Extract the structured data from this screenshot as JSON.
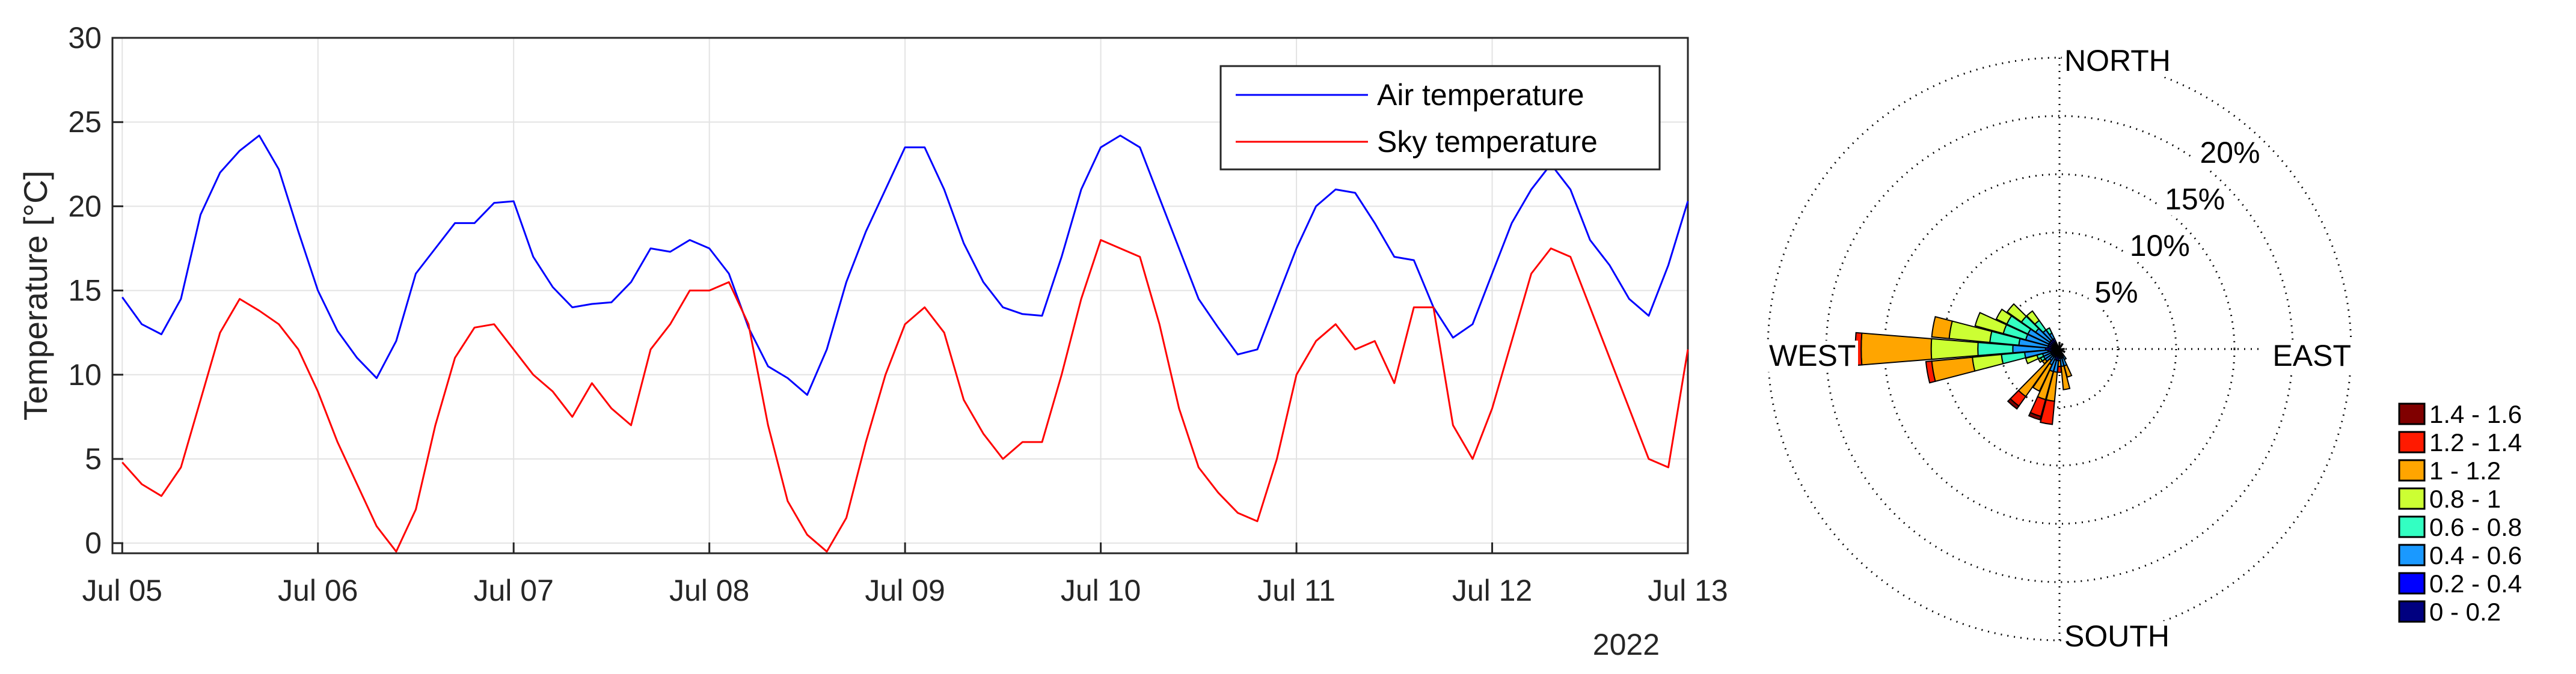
{
  "chart_data": [
    {
      "type": "line",
      "ylabel": "Temperature [°C]",
      "xlabel": "2022",
      "ylim": [
        0,
        30
      ],
      "xlim": [
        0,
        8
      ],
      "grid": true,
      "legend_position": "top-right",
      "yticks": [
        "0",
        "5",
        "10",
        "15",
        "20",
        "25",
        "30"
      ],
      "xticks": [
        "Jul 05",
        "Jul 06",
        "Jul 07",
        "Jul 08",
        "Jul 09",
        "Jul 10",
        "Jul 11",
        "Jul 12",
        "Jul 13"
      ],
      "year_label": "2022",
      "series": [
        {
          "name": "Air temperature",
          "color": "#0000ff",
          "points": [
            [
              0,
              14.6
            ],
            [
              0.1,
              13
            ],
            [
              0.2,
              12.4
            ],
            [
              0.3,
              14.5
            ],
            [
              0.4,
              19.5
            ],
            [
              0.5,
              22
            ],
            [
              0.6,
              23.3
            ],
            [
              0.7,
              24.2
            ],
            [
              0.8,
              22.2
            ],
            [
              0.9,
              18.5
            ],
            [
              1.0,
              15
            ],
            [
              1.1,
              12.6
            ],
            [
              1.2,
              11
            ],
            [
              1.3,
              9.8
            ],
            [
              1.4,
              12
            ],
            [
              1.5,
              16
            ],
            [
              1.6,
              17.5
            ],
            [
              1.7,
              19
            ],
            [
              1.8,
              19
            ],
            [
              1.9,
              20.2
            ],
            [
              2.0,
              20.3
            ],
            [
              2.1,
              17
            ],
            [
              2.2,
              15.2
            ],
            [
              2.3,
              14
            ],
            [
              2.4,
              14.2
            ],
            [
              2.5,
              14.3
            ],
            [
              2.6,
              15.5
            ],
            [
              2.7,
              17.5
            ],
            [
              2.8,
              17.3
            ],
            [
              2.9,
              18
            ],
            [
              3.0,
              17.5
            ],
            [
              3.1,
              16
            ],
            [
              3.2,
              12.8
            ],
            [
              3.3,
              10.5
            ],
            [
              3.4,
              9.8
            ],
            [
              3.5,
              8.8
            ],
            [
              3.6,
              11.5
            ],
            [
              3.7,
              15.5
            ],
            [
              3.8,
              18.5
            ],
            [
              3.9,
              21
            ],
            [
              4.0,
              23.5
            ],
            [
              4.1,
              23.5
            ],
            [
              4.2,
              21
            ],
            [
              4.3,
              17.8
            ],
            [
              4.4,
              15.5
            ],
            [
              4.5,
              14
            ],
            [
              4.6,
              13.6
            ],
            [
              4.7,
              13.5
            ],
            [
              4.8,
              17
            ],
            [
              4.9,
              21
            ],
            [
              5.0,
              23.5
            ],
            [
              5.1,
              24.2
            ],
            [
              5.2,
              23.5
            ],
            [
              5.3,
              20.5
            ],
            [
              5.4,
              17.5
            ],
            [
              5.5,
              14.5
            ],
            [
              5.6,
              12.8
            ],
            [
              5.7,
              11.2
            ],
            [
              5.8,
              11.5
            ],
            [
              5.9,
              14.5
            ],
            [
              6.0,
              17.5
            ],
            [
              6.1,
              20
            ],
            [
              6.2,
              21
            ],
            [
              6.3,
              20.8
            ],
            [
              6.4,
              19
            ],
            [
              6.5,
              17
            ],
            [
              6.6,
              16.8
            ],
            [
              6.7,
              14
            ],
            [
              6.8,
              12.2
            ],
            [
              6.9,
              13
            ],
            [
              7.0,
              16
            ],
            [
              7.1,
              19
            ],
            [
              7.2,
              21
            ],
            [
              7.3,
              22.5
            ],
            [
              7.4,
              21
            ],
            [
              7.5,
              18
            ],
            [
              7.6,
              16.5
            ],
            [
              7.7,
              14.5
            ],
            [
              7.8,
              13.5
            ],
            [
              7.9,
              16.5
            ],
            [
              8.0,
              20.3
            ]
          ]
        },
        {
          "name": "Sky temperature",
          "color": "#ff0000",
          "points": [
            [
              0,
              4.8
            ],
            [
              0.1,
              3.5
            ],
            [
              0.2,
              2.8
            ],
            [
              0.3,
              4.5
            ],
            [
              0.4,
              8.5
            ],
            [
              0.5,
              12.5
            ],
            [
              0.6,
              14.5
            ],
            [
              0.7,
              13.8
            ],
            [
              0.8,
              13
            ],
            [
              0.9,
              11.5
            ],
            [
              1.0,
              9
            ],
            [
              1.1,
              6
            ],
            [
              1.2,
              3.5
            ],
            [
              1.3,
              1
            ],
            [
              1.4,
              -0.5
            ],
            [
              1.5,
              2
            ],
            [
              1.6,
              7
            ],
            [
              1.7,
              11
            ],
            [
              1.8,
              12.8
            ],
            [
              1.9,
              13
            ],
            [
              2.0,
              11.5
            ],
            [
              2.1,
              10
            ],
            [
              2.2,
              9
            ],
            [
              2.3,
              7.5
            ],
            [
              2.4,
              9.5
            ],
            [
              2.5,
              8
            ],
            [
              2.6,
              7
            ],
            [
              2.7,
              11.5
            ],
            [
              2.8,
              13
            ],
            [
              2.9,
              15
            ],
            [
              3.0,
              15
            ],
            [
              3.1,
              15.5
            ],
            [
              3.2,
              13
            ],
            [
              3.3,
              7
            ],
            [
              3.4,
              2.5
            ],
            [
              3.5,
              0.5
            ],
            [
              3.6,
              -0.5
            ],
            [
              3.7,
              1.5
            ],
            [
              3.8,
              6
            ],
            [
              3.9,
              10
            ],
            [
              4.0,
              13
            ],
            [
              4.1,
              14
            ],
            [
              4.2,
              12.5
            ],
            [
              4.3,
              8.5
            ],
            [
              4.4,
              6.5
            ],
            [
              4.5,
              5
            ],
            [
              4.6,
              6
            ],
            [
              4.7,
              6
            ],
            [
              4.8,
              10
            ],
            [
              4.9,
              14.5
            ],
            [
              5.0,
              18
            ],
            [
              5.1,
              17.5
            ],
            [
              5.2,
              17
            ],
            [
              5.3,
              13
            ],
            [
              5.4,
              8
            ],
            [
              5.5,
              4.5
            ],
            [
              5.6,
              3
            ],
            [
              5.7,
              1.8
            ],
            [
              5.8,
              1.3
            ],
            [
              5.9,
              5
            ],
            [
              6.0,
              10
            ],
            [
              6.1,
              12
            ],
            [
              6.2,
              13
            ],
            [
              6.3,
              11.5
            ],
            [
              6.4,
              12
            ],
            [
              6.5,
              9.5
            ],
            [
              6.6,
              14
            ],
            [
              6.7,
              14
            ],
            [
              6.8,
              7
            ],
            [
              6.9,
              5
            ],
            [
              7.0,
              8
            ],
            [
              7.1,
              12
            ],
            [
              7.2,
              16
            ],
            [
              7.3,
              17.5
            ],
            [
              7.4,
              17
            ],
            [
              7.5,
              14
            ],
            [
              7.6,
              11
            ],
            [
              7.7,
              8
            ],
            [
              7.8,
              5
            ],
            [
              7.9,
              4.5
            ],
            [
              8.0,
              11.5
            ]
          ]
        }
      ]
    },
    {
      "type": "wind-rose",
      "directions": {
        "north": "NORTH",
        "east": "EAST",
        "south": "SOUTH",
        "west": "WEST"
      },
      "rlim": [
        0,
        25
      ],
      "radial_ticks": [
        {
          "value": 5,
          "label": "5%"
        },
        {
          "value": 10,
          "label": "10%"
        },
        {
          "value": 15,
          "label": "15%"
        },
        {
          "value": 20,
          "label": "20%"
        }
      ],
      "bins": [
        {
          "label": "1.4 - 1.6",
          "color": "#800000"
        },
        {
          "label": "1.2 - 1.4",
          "color": "#ff1a00"
        },
        {
          "label": "1 - 1.2",
          "color": "#ffa500"
        },
        {
          "label": "0.8 - 1",
          "color": "#ccff33"
        },
        {
          "label": "0.6 - 0.8",
          "color": "#33ffc2"
        },
        {
          "label": "0.4 - 0.6",
          "color": "#1a99ff"
        },
        {
          "label": "0.2 - 0.4",
          "color": "#0000ff"
        },
        {
          "label": "0 - 0.2",
          "color": "#000080"
        }
      ],
      "sectors": [
        {
          "direction_deg": 270,
          "cumulative_percent": [
            0.5,
            1.2,
            4,
            7,
            11,
            17,
            17.5,
            17.5
          ]
        },
        {
          "direction_deg": 280,
          "cumulative_percent": [
            0.5,
            1,
            3.5,
            6,
            9.5,
            11,
            11,
            11
          ]
        },
        {
          "direction_deg": 260,
          "cumulative_percent": [
            0.5,
            1,
            3,
            5,
            7.5,
            11,
            11.5,
            11.5
          ]
        },
        {
          "direction_deg": 290,
          "cumulative_percent": [
            0.5,
            1,
            3,
            5,
            7.5,
            7.5,
            7.5,
            7.5
          ]
        },
        {
          "direction_deg": 300,
          "cumulative_percent": [
            0.5,
            1,
            3,
            5,
            6,
            6,
            6,
            6
          ]
        },
        {
          "direction_deg": 310,
          "cumulative_percent": [
            0.5,
            1,
            2.5,
            4,
            5.5,
            5.5,
            5.5,
            5.5
          ]
        },
        {
          "direction_deg": 320,
          "cumulative_percent": [
            0.5,
            1,
            2,
            3,
            4,
            4,
            4,
            4
          ]
        },
        {
          "direction_deg": 330,
          "cumulative_percent": [
            0.4,
            1,
            1.5,
            2,
            2,
            2,
            2,
            2
          ]
        },
        {
          "direction_deg": 250,
          "cumulative_percent": [
            0.5,
            0.8,
            1.5,
            2,
            3,
            3,
            3,
            3
          ]
        },
        {
          "direction_deg": 240,
          "cumulative_percent": [
            0.5,
            0.8,
            1.5,
            1.8,
            2,
            2,
            2,
            2
          ]
        },
        {
          "direction_deg": 230,
          "cumulative_percent": [
            0.4,
            0.8,
            1.5,
            1.5,
            1.5,
            1.8,
            1.8,
            1.8
          ]
        },
        {
          "direction_deg": 220,
          "cumulative_percent": [
            0.4,
            0.8,
            1.2,
            1.2,
            1.2,
            5,
            6,
            6.3
          ]
        },
        {
          "direction_deg": 210,
          "cumulative_percent": [
            0.4,
            0.8,
            1.5,
            1.5,
            1.5,
            4,
            4,
            4
          ]
        },
        {
          "direction_deg": 200,
          "cumulative_percent": [
            0.4,
            1,
            2,
            2,
            2,
            4.5,
            6,
            6.3
          ]
        },
        {
          "direction_deg": 190,
          "cumulative_percent": [
            0.4,
            1,
            2,
            2,
            2,
            4.5,
            6.5,
            6.5
          ]
        },
        {
          "direction_deg": 180,
          "cumulative_percent": [
            0.3,
            0.8,
            1,
            1,
            1,
            1.5,
            2,
            2
          ]
        },
        {
          "direction_deg": 170,
          "cumulative_percent": [
            0.3,
            0.8,
            1.5,
            1.5,
            1.5,
            3.5,
            3.5,
            3.5
          ]
        },
        {
          "direction_deg": 160,
          "cumulative_percent": [
            0.3,
            0.8,
            1.5,
            1.5,
            1.5,
            2.5,
            2.5,
            2.5
          ]
        },
        {
          "direction_deg": 150,
          "cumulative_percent": [
            0.3,
            0.5,
            1,
            1,
            1,
            1,
            1,
            1
          ]
        },
        {
          "direction_deg": 0,
          "cumulative_percent": [
            0.3,
            0.3,
            0.5,
            0.5,
            0.5,
            0.5,
            0.5,
            0.5
          ]
        },
        {
          "direction_deg": 30,
          "cumulative_percent": [
            0.3,
            0.3,
            0.5,
            0.5,
            0.5,
            0.5,
            0.5,
            0.5
          ]
        },
        {
          "direction_deg": 90,
          "cumulative_percent": [
            0.2,
            0.2,
            0.4,
            0.4,
            0.4,
            0.4,
            0.4,
            0.4
          ]
        },
        {
          "direction_deg": 120,
          "cumulative_percent": [
            0.2,
            0.3,
            0.5,
            0.5,
            0.5,
            0.5,
            0.5,
            0.5
          ]
        }
      ]
    }
  ]
}
